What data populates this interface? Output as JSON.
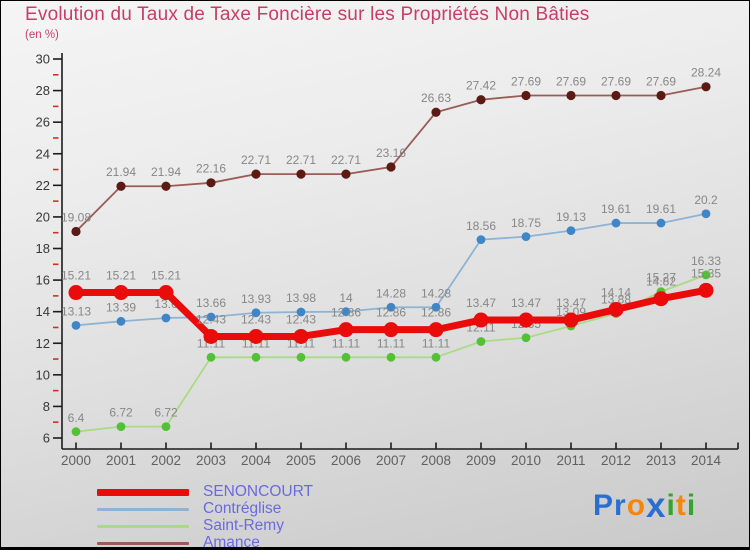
{
  "title": "Evolution du Taux de Taxe Foncière sur les Propriétés Non Bâties",
  "subtitle": "(en %)",
  "colors": {
    "title": "#c73e64",
    "background_top": "#f5f5f5",
    "background_bottom": "#c9c9c9",
    "axis": "#1c1c1c",
    "minor_tick": "#d3311c",
    "y_tick_label": "#383838",
    "x_tick_label": "#606060",
    "data_label": "#878787",
    "legend_text": "#6a6ae0"
  },
  "chart_data": {
    "type": "line",
    "title": "Evolution du Taux de Taxe Foncière sur les Propriétés Non Bâties",
    "xlabel": "",
    "ylabel": "(en %)",
    "ylim": [
      6,
      30
    ],
    "ytick_step": 2,
    "yticks": [
      6,
      8,
      10,
      12,
      14,
      16,
      18,
      20,
      22,
      24,
      26,
      28,
      30
    ],
    "minor_yticks": [
      7,
      9,
      11,
      13,
      15,
      17,
      19,
      21,
      23,
      25,
      27,
      29
    ],
    "grid": false,
    "legend_position": "bottom-left",
    "x": [
      2000,
      2001,
      2002,
      2003,
      2004,
      2005,
      2006,
      2007,
      2008,
      2009,
      2010,
      2011,
      2012,
      2013,
      2014
    ],
    "series": [
      {
        "name": "SENONCOURT",
        "line_color": "#ea0b0b",
        "marker_color": "#ea0b0b",
        "line_width": 7,
        "marker_radius": 7.5,
        "swatch_height": 7,
        "values": [
          15.21,
          15.21,
          15.21,
          12.43,
          12.43,
          12.43,
          12.86,
          12.86,
          12.86,
          13.47,
          13.47,
          13.47,
          14.14,
          14.82,
          15.35
        ]
      },
      {
        "name": "Contréglise",
        "line_color": "#8fb3d3",
        "marker_color": "#3e86c8",
        "line_width": 1.8,
        "marker_radius": 4.4,
        "swatch_height": 3,
        "values": [
          13.13,
          13.39,
          13.6,
          13.66,
          13.93,
          13.98,
          14,
          14.28,
          14.28,
          18.56,
          18.75,
          19.13,
          19.61,
          19.61,
          20.2
        ]
      },
      {
        "name": "Saint-Remy",
        "line_color": "#a9db85",
        "marker_color": "#52c136",
        "line_width": 1.8,
        "marker_radius": 4.4,
        "swatch_height": 3,
        "values": [
          6.4,
          6.72,
          6.72,
          11.11,
          11.11,
          11.11,
          11.11,
          11.11,
          11.11,
          12.11,
          12.35,
          13.09,
          13.88,
          15.27,
          16.33
        ]
      },
      {
        "name": "Amance",
        "line_color": "#9a5c58",
        "marker_color": "#5c1a15",
        "line_width": 1.8,
        "marker_radius": 4.6,
        "swatch_height": 3,
        "values": [
          19.08,
          21.94,
          21.94,
          22.16,
          22.71,
          22.71,
          22.71,
          23.16,
          26.63,
          27.42,
          27.69,
          27.69,
          27.69,
          27.69,
          28.24
        ]
      }
    ]
  },
  "legend": [
    "SENONCOURT",
    "Contréglise",
    "Saint-Remy",
    "Amance"
  ],
  "logo": {
    "name": "Proxiti",
    "letters": [
      {
        "ch": "P",
        "color": "#2a6fd0",
        "big": false
      },
      {
        "ch": "r",
        "color": "#2a6fd0",
        "big": false
      },
      {
        "ch": "o",
        "color": "#f5860a",
        "big": false
      },
      {
        "ch": "x",
        "color": "#2a6fd0",
        "big": true
      },
      {
        "ch": "i",
        "color": "#33a52c",
        "big": false
      },
      {
        "ch": "t",
        "color": "#f5860a",
        "big": false
      },
      {
        "ch": "i",
        "color": "#33a52c",
        "big": false
      }
    ]
  }
}
